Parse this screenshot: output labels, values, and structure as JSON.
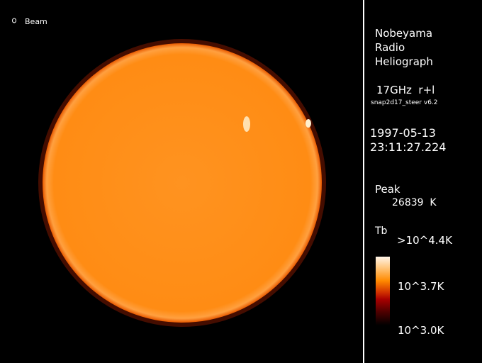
{
  "beam": {
    "label": "Beam"
  },
  "instrument": {
    "line1": "Nobeyama",
    "line2": "Radio",
    "line3": "Heliograph"
  },
  "observation": {
    "frequency": "17GHz  r+l",
    "software": "snap2d17_steer v6.2",
    "date": "1997-05-13",
    "time": "23:11:27.224"
  },
  "peak": {
    "label": "Peak",
    "value": "26839  K"
  },
  "colorbar": {
    "title": "Tb",
    "max_label": ">10^4.4K",
    "mid_label": "10^3.7K",
    "min_label": "10^3.0K"
  },
  "colors": {
    "sun_disk": "#ff8c14",
    "limb": "#e85a00",
    "background": "#000000"
  }
}
